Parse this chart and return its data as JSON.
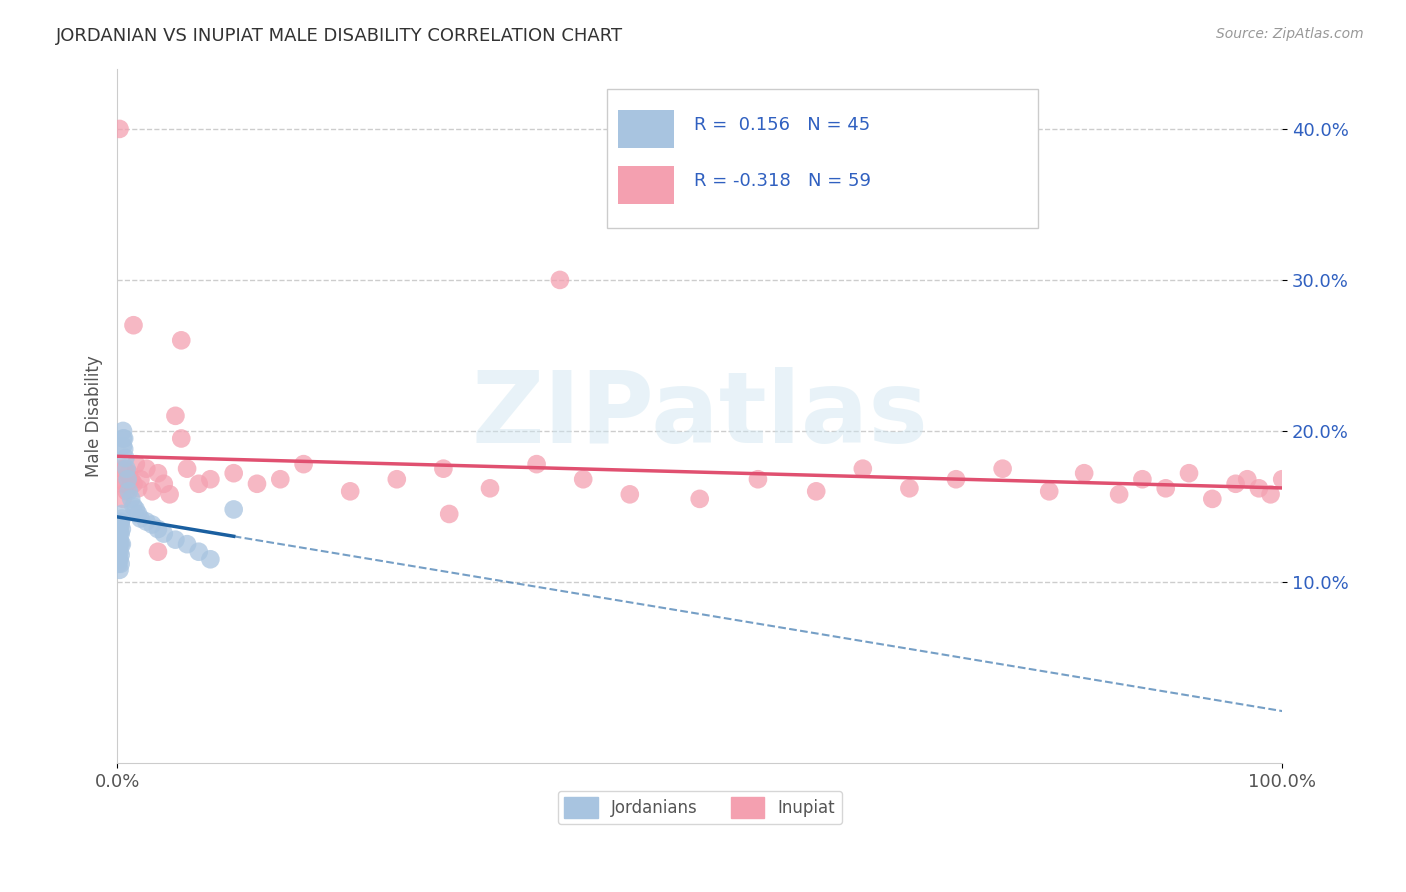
{
  "title": "JORDANIAN VS INUPIAT MALE DISABILITY CORRELATION CHART",
  "source": "Source: ZipAtlas.com",
  "ylabel": "Male Disability",
  "xlim": [
    0.0,
    1.0
  ],
  "ylim": [
    -0.02,
    0.44
  ],
  "xticks": [
    0.0,
    1.0
  ],
  "xtick_labels": [
    "0.0%",
    "100.0%"
  ],
  "yticks": [
    0.1,
    0.2,
    0.3,
    0.4
  ],
  "ytick_labels": [
    "10.0%",
    "20.0%",
    "30.0%",
    "40.0%"
  ],
  "jordanian_color": "#a8c4e0",
  "inupiat_color": "#f4a0b0",
  "jordanian_R": 0.156,
  "jordanian_N": 45,
  "inupiat_R": -0.318,
  "inupiat_N": 59,
  "jordanian_line_color": "#1a5fa0",
  "inupiat_line_color": "#e05070",
  "background_color": "#ffffff",
  "grid_color": "#c8c8c8",
  "title_color": "#333333",
  "axis_color": "#555555",
  "legend_text_color": "#3060c0",
  "watermark": "ZIPatlas",
  "jordanian_x": [
    0.001,
    0.001,
    0.001,
    0.001,
    0.001,
    0.002,
    0.002,
    0.002,
    0.002,
    0.002,
    0.002,
    0.002,
    0.003,
    0.003,
    0.003,
    0.003,
    0.003,
    0.003,
    0.004,
    0.004,
    0.004,
    0.004,
    0.005,
    0.005,
    0.005,
    0.006,
    0.006,
    0.007,
    0.008,
    0.009,
    0.01,
    0.012,
    0.014,
    0.016,
    0.018,
    0.02,
    0.025,
    0.03,
    0.035,
    0.04,
    0.05,
    0.06,
    0.07,
    0.08,
    0.1
  ],
  "jordanian_y": [
    0.13,
    0.125,
    0.12,
    0.115,
    0.112,
    0.135,
    0.132,
    0.128,
    0.125,
    0.12,
    0.115,
    0.108,
    0.14,
    0.138,
    0.132,
    0.125,
    0.118,
    0.112,
    0.145,
    0.142,
    0.135,
    0.125,
    0.2,
    0.195,
    0.19,
    0.195,
    0.188,
    0.182,
    0.175,
    0.168,
    0.16,
    0.155,
    0.15,
    0.148,
    0.145,
    0.142,
    0.14,
    0.138,
    0.135,
    0.132,
    0.128,
    0.125,
    0.12,
    0.115,
    0.148
  ],
  "inupiat_x": [
    0.002,
    0.003,
    0.004,
    0.005,
    0.006,
    0.007,
    0.008,
    0.009,
    0.01,
    0.012,
    0.014,
    0.016,
    0.018,
    0.02,
    0.025,
    0.03,
    0.035,
    0.04,
    0.045,
    0.05,
    0.055,
    0.06,
    0.07,
    0.08,
    0.1,
    0.12,
    0.14,
    0.16,
    0.2,
    0.24,
    0.28,
    0.32,
    0.36,
    0.4,
    0.44,
    0.5,
    0.55,
    0.6,
    0.64,
    0.68,
    0.72,
    0.76,
    0.8,
    0.83,
    0.86,
    0.88,
    0.9,
    0.92,
    0.94,
    0.96,
    0.97,
    0.98,
    0.99,
    1.0,
    0.38,
    0.055,
    0.014,
    0.035,
    0.285
  ],
  "inupiat_y": [
    0.4,
    0.175,
    0.165,
    0.155,
    0.175,
    0.165,
    0.16,
    0.168,
    0.172,
    0.168,
    0.165,
    0.178,
    0.162,
    0.168,
    0.175,
    0.16,
    0.172,
    0.165,
    0.158,
    0.21,
    0.195,
    0.175,
    0.165,
    0.168,
    0.172,
    0.165,
    0.168,
    0.178,
    0.16,
    0.168,
    0.175,
    0.162,
    0.178,
    0.168,
    0.158,
    0.155,
    0.168,
    0.16,
    0.175,
    0.162,
    0.168,
    0.175,
    0.16,
    0.172,
    0.158,
    0.168,
    0.162,
    0.172,
    0.155,
    0.165,
    0.168,
    0.162,
    0.158,
    0.168,
    0.3,
    0.26,
    0.27,
    0.12,
    0.145
  ]
}
